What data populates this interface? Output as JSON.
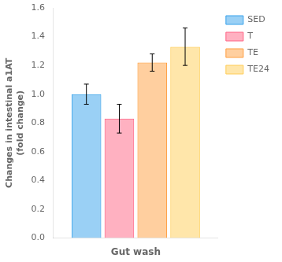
{
  "chart_data": {
    "type": "bar",
    "categories": [
      "Gut wash"
    ],
    "series": [
      {
        "name": "SED",
        "values": [
          1.0
        ],
        "errors": [
          0.07
        ]
      },
      {
        "name": "T",
        "values": [
          0.83
        ],
        "errors": [
          0.1
        ]
      },
      {
        "name": "TE",
        "values": [
          1.22
        ],
        "errors": [
          0.06
        ]
      },
      {
        "name": "TE24",
        "values": [
          1.33
        ],
        "errors": [
          0.13
        ]
      }
    ],
    "ylabel": "Changes in intestinal a1AT\n(fold change)",
    "ylim": [
      0.0,
      1.6
    ],
    "yticks": [
      {
        "value": 0.0,
        "label": "0.0"
      },
      {
        "value": 0.2,
        "label": "0.2"
      },
      {
        "value": 0.4,
        "label": "0.4"
      },
      {
        "value": 0.6,
        "label": "0.6"
      },
      {
        "value": 0.8,
        "label": "0.8"
      },
      {
        "value": 1.0,
        "label": "1.0"
      },
      {
        "value": 1.2,
        "label": "1.2"
      },
      {
        "value": 1.4,
        "label": "1.4"
      },
      {
        "value": 1.6,
        "label": "1.6"
      }
    ],
    "grid": false,
    "legend": "right"
  }
}
